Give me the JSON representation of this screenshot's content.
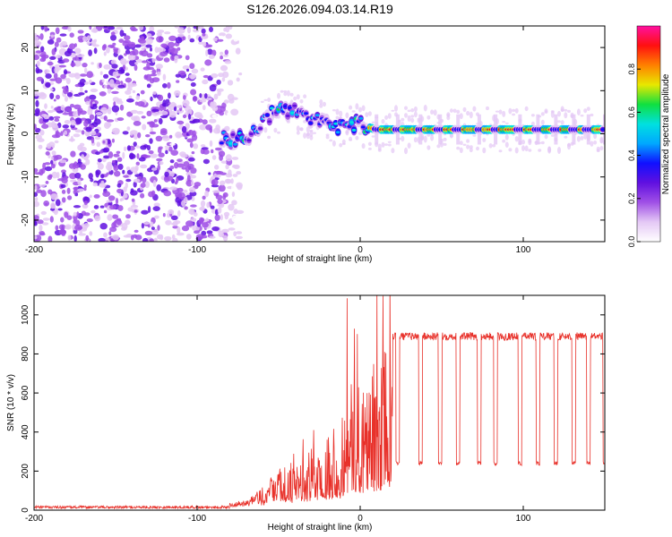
{
  "title": "S126.2026.094.03.14.R19",
  "colors": {
    "snr_line": "#e8312a",
    "frame": "#000000",
    "background": "#ffffff"
  },
  "chart_data": [
    {
      "type": "heatmap",
      "name": "spectrogram",
      "xlabel": "Height of straight line (km)",
      "ylabel": "Frequency (Hz)",
      "xlim": [
        -200,
        150
      ],
      "ylim": [
        -25,
        25
      ],
      "xticks": [
        -200,
        -100,
        0,
        100
      ],
      "xtick_labels": [
        "-200",
        "-100",
        "0",
        "100"
      ],
      "yticks": [
        -20,
        -10,
        0,
        10,
        20
      ],
      "ytick_labels": [
        "-20",
        "-10",
        "0",
        "10",
        "20"
      ],
      "colorbar": {
        "label": "Normalized spectral amplitude",
        "range": [
          0.0,
          1.0
        ],
        "ticks": [
          0.0,
          0.2,
          0.4,
          0.6,
          0.8
        ],
        "tick_labels": [
          "0.0",
          "0.2",
          "0.4",
          "0.6",
          "0.8"
        ],
        "colormap": [
          "#ffffff",
          "#e4c8f5",
          "#a050e6",
          "#6010e0",
          "#1010ff",
          "#00a8ff",
          "#00e0e0",
          "#10e040",
          "#e8e800",
          "#ff8000",
          "#ff1010",
          "#ff10a0"
        ]
      },
      "carrier_track": [
        [
          -85,
          -1
        ],
        [
          -78,
          -1.5
        ],
        [
          -72,
          -1
        ],
        [
          -65,
          0.5
        ],
        [
          -58,
          3.5
        ],
        [
          -52,
          5
        ],
        [
          -46,
          5.5
        ],
        [
          -40,
          5
        ],
        [
          -34,
          4.5
        ],
        [
          -28,
          3.5
        ],
        [
          -22,
          2.5
        ],
        [
          -16,
          2
        ],
        [
          -10,
          1.5
        ],
        [
          -5,
          2
        ],
        [
          0,
          2.5
        ],
        [
          5,
          1.5
        ],
        [
          10,
          1
        ],
        [
          20,
          1
        ],
        [
          150,
          1
        ]
      ],
      "noise_region_x": [
        -200,
        -80
      ],
      "noise_level": 0.15,
      "tone_amplitude_above_0km": 0.85
    },
    {
      "type": "line",
      "name": "snr",
      "xlabel": "Height of straight line (km)",
      "ylabel": "SNR (10 * v/v)",
      "xlim": [
        -200,
        150
      ],
      "ylim": [
        0,
        1100
      ],
      "xticks": [
        -200,
        -100,
        0,
        100
      ],
      "xtick_labels": [
        "-200",
        "-100",
        "0",
        "100"
      ],
      "yticks": [
        0,
        200,
        400,
        600,
        800,
        1000
      ],
      "ytick_labels": [
        "0",
        "200",
        "400",
        "600",
        "800",
        "1000"
      ],
      "baseline_snr": 15,
      "plateau_snr": 890,
      "dropout_snr": 240,
      "envelope": [
        [
          -200,
          15
        ],
        [
          -80,
          15
        ],
        [
          -70,
          30
        ],
        [
          -60,
          120
        ],
        [
          -50,
          200
        ],
        [
          -40,
          260
        ],
        [
          -30,
          330
        ],
        [
          -20,
          420
        ],
        [
          -10,
          520
        ],
        [
          -5,
          700
        ],
        [
          0,
          760
        ],
        [
          10,
          830
        ],
        [
          20,
          860
        ],
        [
          30,
          880
        ],
        [
          40,
          890
        ],
        [
          150,
          890
        ]
      ],
      "dropout_centers_km": [
        10,
        23,
        37,
        49,
        60,
        73,
        83,
        98,
        109,
        120,
        131,
        140,
        150
      ],
      "spike_peak": {
        "x": -8,
        "y": 1085
      }
    }
  ]
}
